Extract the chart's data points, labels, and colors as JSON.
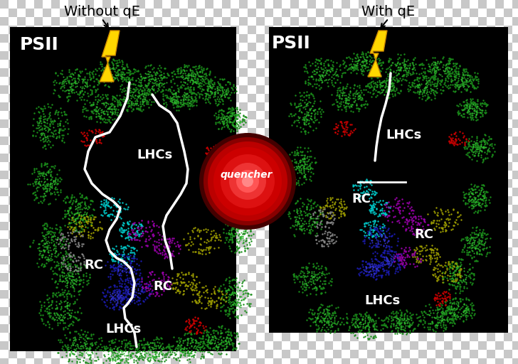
{
  "background_color": "#c8c8c8",
  "panel_bg": "#000000",
  "title_left": "Without qE",
  "title_right": "With qE",
  "title_fontsize": 14,
  "psii_label": "PSII",
  "psii_fontsize": 18,
  "lhcs_label": "LHCs",
  "rc_label": "RC",
  "quencher_label": "quencher",
  "label_fontsize": 13,
  "lightning_color": "#FFD700",
  "quencher_color": "#cc0000"
}
